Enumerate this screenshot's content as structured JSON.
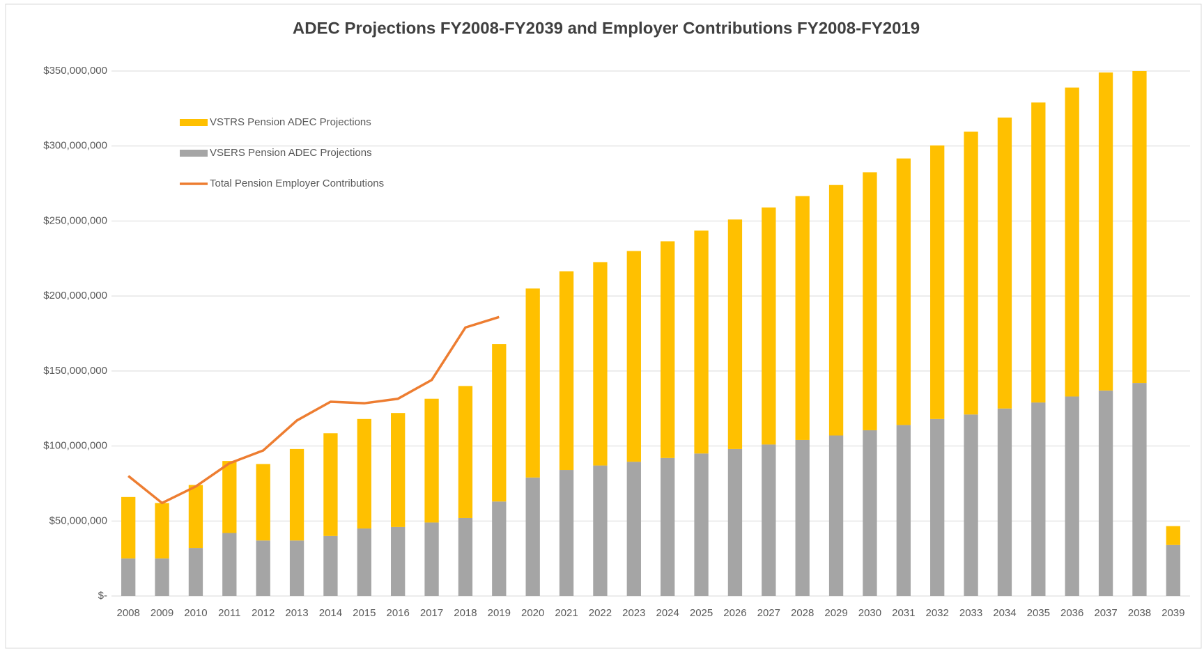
{
  "chart_data": {
    "type": "bar",
    "stacked": true,
    "title": "ADEC Projections FY2008-FY2039 and Employer Contributions FY2008-FY2019",
    "categories": [
      "2008",
      "2009",
      "2010",
      "2011",
      "2012",
      "2013",
      "2014",
      "2015",
      "2016",
      "2017",
      "2018",
      "2019",
      "2020",
      "2021",
      "2022",
      "2023",
      "2024",
      "2025",
      "2026",
      "2027",
      "2028",
      "2029",
      "2030",
      "2031",
      "2032",
      "2033",
      "2034",
      "2035",
      "2036",
      "2037",
      "2038",
      "2039"
    ],
    "series": [
      {
        "name": "VSERS Pension ADEC Projections",
        "color": "#a5a5a5",
        "type": "bar",
        "values": [
          25000000,
          25000000,
          32000000,
          42000000,
          37000000,
          37000000,
          40000000,
          45000000,
          46000000,
          49000000,
          52000000,
          63000000,
          79000000,
          84000000,
          87000000,
          89500000,
          92000000,
          95000000,
          98000000,
          101000000,
          104000000,
          107000000,
          110500000,
          114000000,
          118000000,
          121000000,
          125000000,
          129000000,
          133000000,
          137000000,
          142000000,
          34000000
        ]
      },
      {
        "name": "VSTRS Pension ADEC Projections",
        "color": "#ffc000",
        "type": "bar",
        "values": [
          41000000,
          37000000,
          42000000,
          48000000,
          51000000,
          61000000,
          68500000,
          73000000,
          76000000,
          82500000,
          88000000,
          105000000,
          126000000,
          132500000,
          135600000,
          140500000,
          144500000,
          148600000,
          153000000,
          158000000,
          162600000,
          167000000,
          172000000,
          177700000,
          182400000,
          188600000,
          194000000,
          200000000,
          206000000,
          212000000,
          208000000,
          12600000
        ]
      },
      {
        "name": "Total Pension Employer Contributions",
        "color": "#ed7d31",
        "type": "line",
        "values": [
          80000000,
          62000000,
          73000000,
          88500000,
          97000000,
          117000000,
          129500000,
          128500000,
          131500000,
          144000000,
          179000000,
          186000000,
          null,
          null,
          null,
          null,
          null,
          null,
          null,
          null,
          null,
          null,
          null,
          null,
          null,
          null,
          null,
          null,
          null,
          null,
          null,
          null
        ]
      }
    ],
    "legend_order": [
      1,
      0,
      2
    ],
    "ylim": [
      0,
      350000000
    ],
    "yticks": [
      {
        "value": 0,
        "label": "$-"
      },
      {
        "value": 50000000,
        "label": "$50,000,000"
      },
      {
        "value": 100000000,
        "label": "$100,000,000"
      },
      {
        "value": 150000000,
        "label": "$150,000,000"
      },
      {
        "value": 200000000,
        "label": "$200,000,000"
      },
      {
        "value": 250000000,
        "label": "$250,000,000"
      },
      {
        "value": 300000000,
        "label": "$300,000,000"
      },
      {
        "value": 350000000,
        "label": "$350,000,000"
      }
    ],
    "grid": true,
    "legend": "upper left"
  }
}
